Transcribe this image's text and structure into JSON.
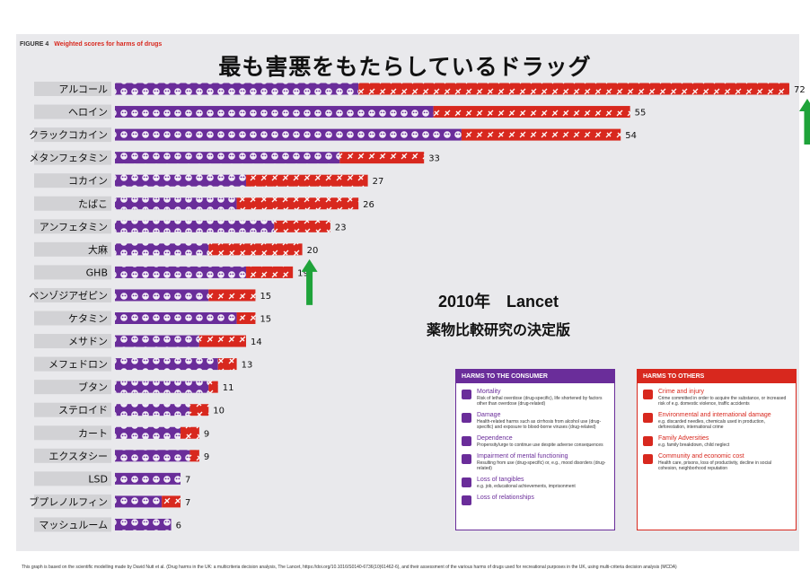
{
  "figure": {
    "label": "FIGURE 4",
    "caption": "Weighted scores for harms of drugs",
    "overlay_title": "最も害悪をもたらしているドラッグ",
    "note_line1": "2010年　Lancet",
    "note_line2": "薬物比較研究の決定版",
    "footer": "This graph is based on the scientific modelling made by David Nutt et al. (Drug harms in the UK: a multicriteria decision analysis, The Lancet,  https://doi.org/10.1016/S0140-6736(10)61462-6), and their assessment of the various harms of drugs used for recreational purposes in the UK, using multi-criteria decision analysis (MCDA)"
  },
  "colors": {
    "consumer": "#6a2d9a",
    "others": "#d8281e",
    "arrow": "#1fa33a",
    "label_box": "#d2d2d5"
  },
  "chart_data": {
    "type": "bar",
    "orientation": "horizontal",
    "stacked": true,
    "categories": [
      "アルコール",
      "ヘロイン",
      "クラックコカイン",
      "メタンフェタミン",
      "コカイン",
      "たばこ",
      "アンフェタミン",
      "大麻",
      "GHB",
      "ベンゾジアゼピン",
      "ケタミン",
      "メサドン",
      "メフェドロン",
      "ブタン",
      "ステロイド",
      "カート",
      "エクスタシー",
      "LSD",
      "ブプレノルフィン",
      "マッシュルーム"
    ],
    "totals": [
      72,
      55,
      54,
      33,
      27,
      26,
      23,
      20,
      19,
      15,
      15,
      14,
      13,
      11,
      10,
      9,
      9,
      7,
      7,
      6
    ],
    "series": [
      {
        "name": "HARMS TO THE CONSUMER",
        "values": [
          26,
          34,
          37,
          24,
          14,
          13,
          17,
          10,
          14,
          10,
          13,
          9,
          11,
          10,
          8,
          7,
          8,
          7,
          5,
          6
        ]
      },
      {
        "name": "HARMS TO OTHERS",
        "values": [
          46,
          21,
          17,
          9,
          13,
          13,
          6,
          10,
          5,
          5,
          2,
          5,
          2,
          1,
          2,
          2,
          1,
          0,
          2,
          0
        ]
      }
    ],
    "xlim": [
      0,
      75
    ],
    "highlighted": [
      "アルコール",
      "大麻"
    ]
  },
  "legend": {
    "consumer": {
      "title": "HARMS TO THE CONSUMER",
      "items": [
        {
          "icon": "skull-icon",
          "name": "Mortality",
          "desc": "Risk of lethal overdose (drug-specific), life shortened by factors other than overdose (drug-related)"
        },
        {
          "icon": "broken-bone-icon",
          "name": "Damage",
          "desc": "Health-related harms such as cirrhosis from alcohol use (drug-specific) and exposure to blood-borne viruses (drug-related)"
        },
        {
          "icon": "chain-icon",
          "name": "Dependence",
          "desc": "Propensity/urge to continue use despite adverse consequences"
        },
        {
          "icon": "brain-icon",
          "name": "Impairment of mental functioning",
          "desc": "Resulting from use (drug-specific) or, e.g., mood disorders (drug-related)"
        },
        {
          "icon": "flame-icon",
          "name": "Loss of tangibles",
          "desc": "e.g. job, educational achievements, imprisonment"
        },
        {
          "icon": "broken-heart-icon",
          "name": "Loss of relationships",
          "desc": ""
        }
      ]
    },
    "others": {
      "title": "HARMS TO OTHERS",
      "items": [
        {
          "icon": "knife-icon",
          "name": "Crime and injury",
          "desc": "Crime committed in order to acquire the substance, or increased risk of e.g. domestic violence, traffic accidents"
        },
        {
          "icon": "globe-icon",
          "name": "Environmental and international damage",
          "desc": "e.g. discarded needles, chemicals used in production, deforestation, international crime"
        },
        {
          "icon": "family-icon",
          "name": "Family Adversities",
          "desc": "e.g. family breakdown, child neglect"
        },
        {
          "icon": "community-icon",
          "name": "Community and economic cost",
          "desc": "Health care, prisons, loss of productivity, decline in social cohesion, neighborhood reputation"
        }
      ]
    }
  }
}
